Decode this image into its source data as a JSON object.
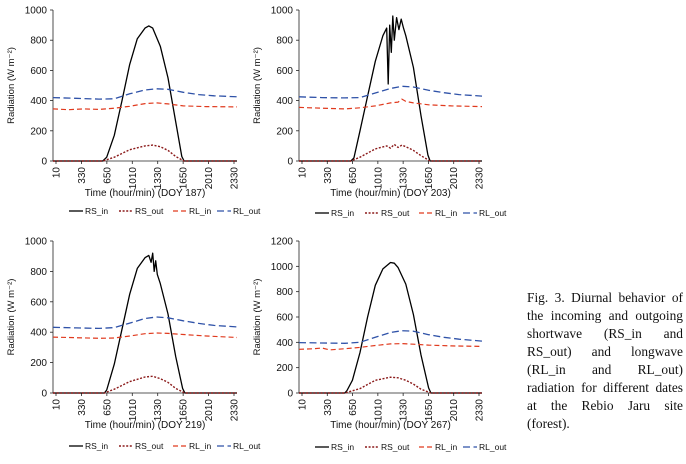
{
  "caption": "Fig. 3. Diurnal behavior of the incoming and outgoing shortwave (RS_in and RS_out) and longwave (RL_in and RL_out) radiation for different dates at the Rebio Jaru site (forest).",
  "ylabel_text": "Radiation (W m⁻²)",
  "colors": {
    "RS_in": "#000000",
    "RS_out": "#8b1a1a",
    "RL_in": "#e03a1e",
    "RL_out": "#2f52a8"
  },
  "chart_data": [
    {
      "type": "line",
      "xlabel": "Time (hour/min) (DOY 187)",
      "ylabel": "Radiation (W m⁻²)",
      "ylim": [
        0,
        1000
      ],
      "yticks": [
        0,
        200,
        400,
        600,
        800,
        1000
      ],
      "xticks": [
        "10",
        "330",
        "650",
        "1010",
        "1330",
        "1650",
        "2010",
        "2330"
      ],
      "legend": [
        "RS_in",
        "RS_out",
        "RL_in",
        "RL_out"
      ],
      "series": [
        {
          "name": "RS_in",
          "x": [
            0,
            5,
            6.5,
            7,
            8,
            9,
            10,
            11,
            12,
            12.5,
            13,
            14,
            15,
            16,
            16.8,
            17.1,
            24
          ],
          "values": [
            0,
            0,
            0,
            25,
            170,
            400,
            640,
            810,
            880,
            895,
            880,
            760,
            550,
            260,
            30,
            0,
            0
          ]
        },
        {
          "name": "RS_out",
          "x": [
            0,
            6.5,
            8,
            10,
            12,
            13,
            14,
            15,
            16,
            17.1,
            24
          ],
          "values": [
            0,
            0,
            25,
            75,
            100,
            105,
            95,
            70,
            30,
            0,
            0
          ]
        },
        {
          "name": "RL_in",
          "x": [
            0,
            2,
            4,
            6,
            8,
            10,
            12,
            13.5,
            15,
            17,
            20,
            24
          ],
          "values": [
            345,
            340,
            345,
            342,
            350,
            362,
            380,
            385,
            378,
            365,
            360,
            358
          ]
        },
        {
          "name": "RL_out",
          "x": [
            0,
            3,
            6,
            8,
            10,
            12,
            13.5,
            15,
            17,
            19,
            21,
            24
          ],
          "values": [
            420,
            415,
            410,
            412,
            445,
            470,
            478,
            475,
            455,
            440,
            432,
            425
          ]
        }
      ]
    },
    {
      "type": "line",
      "xlabel": "Time (hour/min) (DOY 203)",
      "ylabel": "Radiation (W m⁻²)",
      "ylim": [
        0,
        1000
      ],
      "yticks": [
        0,
        200,
        400,
        600,
        800,
        1000
      ],
      "xticks": [
        "10",
        "330",
        "650",
        "1010",
        "1330",
        "1650",
        "2010",
        "2330"
      ],
      "legend": [
        "RS_in",
        "RS_out",
        "RL_in",
        "RL_out"
      ],
      "series": [
        {
          "name": "RS_in",
          "x": [
            0,
            6.8,
            7.2,
            8,
            9,
            10,
            11,
            11.5,
            11.7,
            11.9,
            12.1,
            12.3,
            12.5,
            12.8,
            13.1,
            13.4,
            13.7,
            14,
            15,
            16,
            16.9,
            17.2,
            24
          ],
          "values": [
            0,
            0,
            20,
            200,
            430,
            660,
            830,
            880,
            510,
            900,
            720,
            960,
            800,
            950,
            870,
            940,
            880,
            830,
            620,
            300,
            40,
            0,
            0
          ]
        },
        {
          "name": "RS_out",
          "x": [
            0,
            6.8,
            8,
            10,
            11.5,
            12,
            12.5,
            13,
            13.5,
            14,
            15,
            16,
            17.2,
            24
          ],
          "values": [
            0,
            0,
            25,
            80,
            100,
            85,
            110,
            90,
            105,
            95,
            70,
            35,
            0,
            0
          ]
        },
        {
          "name": "RL_in",
          "x": [
            0,
            3,
            6,
            8,
            10,
            12,
            13,
            13.5,
            14,
            15,
            17,
            20,
            24
          ],
          "values": [
            355,
            350,
            345,
            352,
            365,
            385,
            390,
            410,
            395,
            385,
            372,
            365,
            360
          ]
        },
        {
          "name": "RL_out",
          "x": [
            0,
            3,
            6,
            8,
            10,
            12,
            13.5,
            15,
            17,
            19,
            21,
            24
          ],
          "values": [
            425,
            420,
            418,
            420,
            450,
            480,
            495,
            490,
            468,
            452,
            440,
            430
          ]
        }
      ]
    },
    {
      "type": "line",
      "xlabel": "Time (hour/min) (DOY 219)",
      "ylabel": "Radiation (W m⁻²)",
      "ylim": [
        0,
        1000
      ],
      "yticks": [
        0,
        200,
        400,
        600,
        800,
        1000
      ],
      "xticks": [
        "10",
        "330",
        "650",
        "1010",
        "1330",
        "1650",
        "2010",
        "2330"
      ],
      "legend": [
        "RS_in",
        "RS_out",
        "RL_in",
        "RL_out"
      ],
      "series": [
        {
          "name": "RS_in",
          "x": [
            0,
            6.7,
            7,
            8,
            9,
            10,
            11,
            12,
            12.5,
            12.8,
            13,
            13.2,
            13.4,
            13.6,
            14,
            15,
            16,
            16.9,
            17.2,
            24
          ],
          "values": [
            0,
            0,
            20,
            190,
            420,
            650,
            820,
            890,
            905,
            860,
            920,
            800,
            870,
            780,
            720,
            520,
            240,
            30,
            0,
            0
          ]
        },
        {
          "name": "RS_out",
          "x": [
            0,
            6.7,
            8,
            10,
            12,
            13,
            14,
            15,
            16,
            17.2,
            24
          ],
          "values": [
            0,
            0,
            25,
            75,
            105,
            110,
            95,
            70,
            30,
            0,
            0
          ]
        },
        {
          "name": "RL_in",
          "x": [
            0,
            3,
            6,
            8,
            10,
            12,
            13.5,
            15,
            17,
            20,
            24
          ],
          "values": [
            368,
            364,
            360,
            362,
            375,
            390,
            395,
            392,
            385,
            375,
            365
          ]
        },
        {
          "name": "RL_out",
          "x": [
            0,
            3,
            6,
            8,
            10,
            12,
            13.5,
            15,
            17,
            19,
            21,
            24
          ],
          "values": [
            432,
            428,
            425,
            430,
            460,
            490,
            500,
            495,
            475,
            458,
            445,
            435
          ]
        }
      ]
    },
    {
      "type": "line",
      "xlabel": "Time (hour/min) (DOY 267)",
      "ylabel": "Radiation (W m⁻²)",
      "ylim": [
        0,
        1200
      ],
      "yticks": [
        0,
        200,
        400,
        600,
        800,
        1000,
        1200
      ],
      "xticks": [
        "10",
        "330",
        "650",
        "1010",
        "1330",
        "1650",
        "2010",
        "2330"
      ],
      "legend": [
        "RS_in",
        "RS_out",
        "RL_in",
        "RL_out"
      ],
      "series": [
        {
          "name": "RS_in",
          "x": [
            0,
            6,
            6.3,
            7,
            8,
            9,
            10,
            11,
            12,
            12.5,
            13,
            14,
            15,
            16,
            17,
            17.3,
            24
          ],
          "values": [
            0,
            0,
            20,
            100,
            320,
            600,
            850,
            980,
            1030,
            1025,
            990,
            860,
            620,
            300,
            40,
            0,
            0
          ]
        },
        {
          "name": "RS_out",
          "x": [
            0,
            6,
            8,
            10,
            12,
            13,
            14,
            15,
            16,
            17.3,
            24
          ],
          "values": [
            0,
            0,
            35,
            100,
            125,
            120,
            100,
            70,
            30,
            0,
            0
          ]
        },
        {
          "name": "RL_in",
          "x": [
            0,
            2,
            3,
            4,
            6,
            8,
            10,
            12,
            13.5,
            15,
            17,
            20,
            24
          ],
          "values": [
            345,
            350,
            355,
            340,
            350,
            360,
            375,
            388,
            390,
            385,
            378,
            372,
            368
          ]
        },
        {
          "name": "RL_out",
          "x": [
            0,
            3,
            6,
            8,
            10,
            12,
            13.5,
            15,
            17,
            19,
            21,
            24
          ],
          "values": [
            398,
            395,
            392,
            400,
            440,
            478,
            492,
            488,
            460,
            440,
            425,
            410
          ]
        }
      ]
    }
  ]
}
